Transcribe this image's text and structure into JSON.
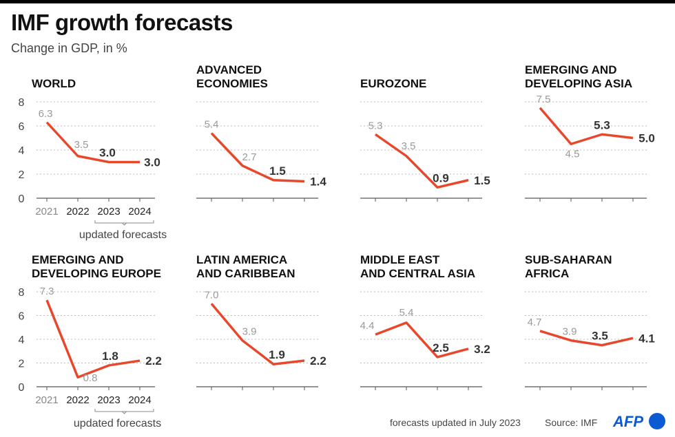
{
  "title": "IMF growth forecasts",
  "subtitle": "Change in GDP, in %",
  "footer": {
    "note": "forecasts updated in July 2023",
    "source": "Source: IMF",
    "logo": "AFP"
  },
  "colors": {
    "line": "#e8472b",
    "past_label": "#999999",
    "forecast_label": "#333333"
  },
  "chart_data": {
    "type": "line",
    "categories": [
      "2021",
      "2022",
      "2023",
      "2024"
    ],
    "forecast_bracket_label": "updated forecasts",
    "ylim": [
      0,
      8
    ],
    "yticks": [
      "0",
      "2",
      "4",
      "6",
      "8"
    ],
    "grid": true,
    "panels": [
      {
        "title": [
          "WORLD"
        ],
        "values": [
          6.3,
          3.5,
          3.0,
          3.0
        ],
        "labels": [
          "6.3",
          "3.5",
          "3.0",
          "3.0"
        ]
      },
      {
        "title": [
          "ADVANCED",
          "ECONOMIES"
        ],
        "values": [
          5.4,
          2.7,
          1.5,
          1.4
        ],
        "labels": [
          "5.4",
          "2.7",
          "1.5",
          "1.4"
        ]
      },
      {
        "title": [
          "EUROZONE"
        ],
        "values": [
          5.3,
          3.5,
          0.9,
          1.5
        ],
        "labels": [
          "5.3",
          "3.5",
          "0.9",
          "1.5"
        ]
      },
      {
        "title": [
          "EMERGING AND",
          "DEVELOPING ASIA"
        ],
        "values": [
          7.5,
          4.5,
          5.3,
          5.0
        ],
        "labels": [
          "7.5",
          "4.5",
          "5.3",
          "5.0"
        ]
      },
      {
        "title": [
          "EMERGING AND",
          "DEVELOPING EUROPE"
        ],
        "values": [
          7.3,
          0.8,
          1.8,
          2.2
        ],
        "labels": [
          "7.3",
          "0.8",
          "1.8",
          "2.2"
        ]
      },
      {
        "title": [
          "LATIN AMERICA",
          "AND CARIBBEAN"
        ],
        "values": [
          7.0,
          3.9,
          1.9,
          2.2
        ],
        "labels": [
          "7.0",
          "3.9",
          "1.9",
          "2.2"
        ]
      },
      {
        "title": [
          "MIDDLE EAST",
          "AND CENTRAL ASIA"
        ],
        "values": [
          4.4,
          5.4,
          2.5,
          3.2
        ],
        "labels": [
          "4.4",
          "5.4",
          "2.5",
          "3.2"
        ]
      },
      {
        "title": [
          "SUB-SAHARAN",
          "AFRICA"
        ],
        "values": [
          4.7,
          3.9,
          3.5,
          4.1
        ],
        "labels": [
          "4.7",
          "3.9",
          "3.5",
          "4.1"
        ]
      }
    ]
  }
}
